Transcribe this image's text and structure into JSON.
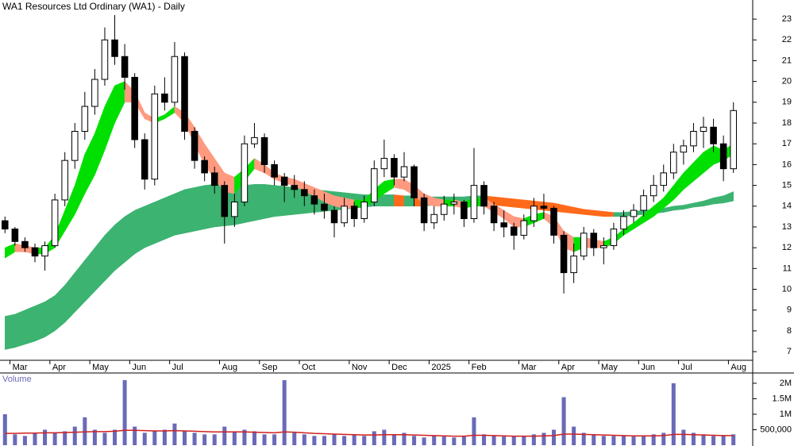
{
  "chart_data": [
    {
      "type": "candlestick",
      "title": "WA1 Resources Ltd Ordinary (WA1) - Daily",
      "categories": [
        null,
        "Mar",
        null,
        null,
        null,
        "Apr",
        null,
        null,
        null,
        "May",
        null,
        null,
        null,
        "Jun",
        null,
        null,
        null,
        "Jul",
        null,
        null,
        null,
        null,
        "Aug",
        null,
        null,
        null,
        "Sep",
        null,
        null,
        null,
        "Oct",
        null,
        null,
        null,
        null,
        "Nov",
        null,
        null,
        null,
        "Dec",
        null,
        null,
        null,
        "2025",
        null,
        null,
        null,
        "Feb",
        null,
        null,
        null,
        null,
        "Mar",
        null,
        null,
        null,
        "Apr",
        null,
        null,
        null,
        "May",
        null,
        null,
        null,
        "Jun",
        null,
        null,
        null,
        "Jul",
        null,
        null,
        null,
        null,
        "Aug"
      ],
      "open": [
        13.3,
        12.9,
        12.3,
        12.0,
        11.6,
        12.1,
        14.3,
        16.2,
        17.6,
        18.8,
        20.1,
        22.0,
        21.2,
        20.2,
        17.2,
        15.3,
        19.4,
        19.0,
        21.2,
        17.6,
        16.2,
        15.6,
        15.0,
        13.5,
        14.2,
        17.0,
        17.3,
        16.0,
        15.4,
        15.0,
        14.8,
        14.5,
        14.1,
        13.8,
        13.2,
        14.0,
        13.4,
        14.2,
        15.8,
        16.3,
        15.4,
        15.9,
        14.4,
        13.2,
        13.6,
        14.1,
        14.2,
        13.4,
        15.0,
        14.0,
        13.2,
        13.0,
        12.6,
        13.3,
        14.0,
        13.9,
        12.6,
        10.8,
        11.6,
        12.7,
        12.0,
        12.1,
        12.9,
        13.5,
        13.8,
        14.5,
        15.0,
        15.6,
        16.6,
        16.9,
        17.6,
        17.8,
        17.0,
        15.8
      ],
      "high": [
        13.5,
        13.0,
        12.5,
        12.2,
        12.3,
        14.6,
        16.6,
        18.0,
        19.5,
        20.6,
        22.6,
        23.2,
        21.8,
        20.4,
        17.5,
        19.8,
        20.2,
        21.9,
        21.4,
        17.8,
        16.4,
        15.9,
        15.2,
        14.6,
        17.4,
        18.0,
        17.5,
        16.2,
        15.6,
        15.5,
        15.2,
        14.8,
        14.6,
        14.0,
        14.4,
        14.2,
        14.5,
        16.2,
        17.2,
        16.5,
        16.6,
        16.0,
        14.6,
        14.0,
        14.5,
        14.6,
        14.3,
        16.8,
        15.2,
        14.2,
        13.8,
        13.2,
        13.6,
        14.4,
        14.6,
        14.0,
        12.8,
        12.2,
        13.0,
        12.9,
        12.5,
        13.2,
        13.8,
        14.1,
        14.8,
        15.5,
        16.0,
        17.0,
        17.2,
        18.0,
        18.3,
        18.2,
        17.4,
        19.0
      ],
      "low": [
        12.7,
        12.1,
        11.8,
        11.3,
        10.9,
        12.0,
        14.0,
        15.8,
        17.2,
        18.4,
        19.8,
        20.8,
        19.6,
        16.8,
        14.8,
        15.0,
        18.6,
        18.8,
        17.2,
        15.8,
        15.2,
        14.6,
        12.2,
        13.0,
        14.0,
        16.8,
        15.6,
        15.0,
        14.2,
        14.4,
        14.0,
        13.6,
        13.4,
        12.5,
        13.0,
        13.0,
        13.2,
        14.0,
        15.4,
        15.0,
        15.2,
        14.0,
        12.8,
        12.9,
        13.3,
        13.6,
        13.0,
        13.2,
        13.6,
        12.8,
        12.5,
        11.9,
        12.4,
        13.0,
        13.4,
        12.2,
        9.8,
        10.3,
        11.4,
        11.6,
        11.2,
        11.9,
        12.6,
        13.2,
        13.5,
        14.2,
        14.7,
        15.3,
        16.0,
        16.6,
        16.8,
        16.6,
        15.2,
        15.6
      ],
      "close": [
        12.9,
        12.3,
        12.0,
        11.6,
        12.1,
        14.3,
        16.2,
        17.6,
        18.8,
        20.1,
        22.0,
        21.2,
        20.2,
        17.2,
        15.3,
        19.4,
        19.0,
        21.2,
        17.6,
        16.2,
        15.6,
        15.0,
        13.5,
        14.2,
        17.0,
        17.3,
        16.0,
        15.4,
        15.0,
        14.8,
        14.5,
        14.1,
        13.8,
        13.2,
        14.0,
        13.4,
        14.2,
        15.8,
        16.3,
        15.4,
        15.9,
        14.4,
        13.2,
        13.6,
        14.1,
        14.2,
        13.4,
        15.0,
        14.0,
        13.2,
        13.0,
        12.6,
        13.3,
        14.0,
        13.9,
        12.6,
        10.8,
        11.6,
        12.7,
        12.0,
        12.1,
        12.9,
        13.5,
        13.8,
        14.5,
        15.0,
        15.6,
        16.6,
        16.9,
        17.6,
        17.8,
        17.0,
        15.8,
        18.6
      ],
      "up_color": "#ffffff",
      "down_color": "#000000",
      "outline_color": "#000000",
      "bands": [
        {
          "upper": [
            8.7,
            8.8,
            9.0,
            9.2,
            9.4,
            9.7,
            10.2,
            10.8,
            11.4,
            12.0,
            12.6,
            13.1,
            13.5,
            13.8,
            14.0,
            14.2,
            14.4,
            14.6,
            14.8,
            14.9,
            15.0,
            15.05,
            15.05,
            15.0,
            15.0,
            15.05,
            15.05,
            15.0,
            14.95,
            14.9,
            14.85,
            14.8,
            14.75,
            14.7,
            14.65,
            14.6,
            14.55,
            14.55,
            14.55,
            14.55,
            14.5,
            14.5,
            14.45,
            14.45,
            14.45,
            14.45,
            14.45,
            14.5,
            14.5,
            14.45,
            14.4,
            14.35,
            14.3,
            14.25,
            14.2,
            14.15,
            14.05,
            13.95,
            13.85,
            13.8,
            13.75,
            13.7,
            13.7,
            13.75,
            13.8,
            13.85,
            13.9,
            14.0,
            14.05,
            14.15,
            14.25,
            14.4,
            14.5,
            14.7
          ],
          "lower": [
            7.1,
            7.2,
            7.35,
            7.5,
            7.7,
            8.0,
            8.4,
            8.9,
            9.4,
            9.9,
            10.4,
            10.9,
            11.3,
            11.7,
            12.0,
            12.2,
            12.4,
            12.6,
            12.7,
            12.8,
            12.9,
            13.0,
            13.05,
            13.1,
            13.2,
            13.3,
            13.4,
            13.5,
            13.55,
            13.6,
            13.65,
            13.7,
            13.75,
            13.8,
            13.85,
            13.9,
            13.95,
            14.0,
            14.0,
            14.0,
            14.0,
            14.0,
            14.0,
            14.05,
            14.05,
            14.1,
            14.1,
            14.1,
            14.1,
            14.05,
            14.0,
            13.95,
            13.9,
            13.85,
            13.8,
            13.75,
            13.7,
            13.65,
            13.6,
            13.55,
            13.5,
            13.5,
            13.5,
            13.55,
            13.6,
            13.65,
            13.7,
            13.8,
            13.85,
            13.95,
            14.0,
            14.1,
            14.15,
            14.25
          ],
          "up_color": "#3cb371",
          "down_color": "#ff6a1a"
        },
        {
          "upper": [
            12.0,
            12.2,
            12.1,
            12.0,
            12.0,
            12.6,
            13.8,
            15.0,
            16.5,
            17.5,
            18.8,
            19.8,
            20.0,
            19.5,
            18.5,
            18.2,
            18.4,
            18.8,
            18.5,
            17.8,
            17.0,
            16.3,
            15.6,
            15.4,
            15.8,
            16.3,
            16.0,
            15.6,
            15.4,
            15.3,
            15.1,
            14.9,
            14.7,
            14.5,
            14.4,
            14.3,
            14.3,
            14.8,
            15.2,
            15.3,
            15.3,
            15.0,
            14.6,
            14.4,
            14.3,
            14.3,
            14.2,
            14.4,
            14.4,
            14.1,
            13.8,
            13.5,
            13.4,
            13.6,
            13.7,
            13.5,
            12.8,
            12.5,
            12.5,
            12.4,
            12.3,
            12.5,
            12.9,
            13.2,
            13.6,
            14.0,
            14.4,
            15.0,
            15.6,
            16.1,
            16.6,
            16.9,
            16.7,
            17.0
          ],
          "lower": [
            11.5,
            11.8,
            11.8,
            11.7,
            11.7,
            12.0,
            12.8,
            13.6,
            14.6,
            15.5,
            16.7,
            18.0,
            19.0,
            19.0,
            18.2,
            18.0,
            18.2,
            18.5,
            18.0,
            17.0,
            16.0,
            15.3,
            14.7,
            14.6,
            15.2,
            15.8,
            15.6,
            15.3,
            15.1,
            15.0,
            14.7,
            14.5,
            14.2,
            14.0,
            13.9,
            13.9,
            14.0,
            14.2,
            14.6,
            14.9,
            14.8,
            14.5,
            14.1,
            14.0,
            14.0,
            14.0,
            13.9,
            14.0,
            14.0,
            13.7,
            13.4,
            13.0,
            13.0,
            13.2,
            13.4,
            13.0,
            12.0,
            11.8,
            12.0,
            12.0,
            12.0,
            12.2,
            12.6,
            12.9,
            13.2,
            13.5,
            13.9,
            14.3,
            14.8,
            15.2,
            15.6,
            16.0,
            16.2,
            16.5
          ],
          "up_color": "#00e000",
          "down_color": "#ff9a80"
        }
      ],
      "ylim": [
        6.66,
        23.92
      ],
      "yticks": [
        7,
        8,
        9,
        10,
        11,
        12,
        13,
        14,
        15,
        16,
        17,
        18,
        19,
        20,
        21,
        22,
        23
      ]
    },
    {
      "type": "bar",
      "title": "Volume",
      "color": "#6a6ab8",
      "values": [
        1000000,
        350000,
        300000,
        400000,
        500000,
        400000,
        450000,
        600000,
        900000,
        500000,
        400000,
        500000,
        2100000,
        600000,
        400000,
        450000,
        500000,
        700000,
        450000,
        400000,
        350000,
        350000,
        600000,
        450000,
        500000,
        450000,
        350000,
        350000,
        2100000,
        400000,
        350000,
        300000,
        300000,
        350000,
        300000,
        350000,
        300000,
        450000,
        500000,
        350000,
        400000,
        300000,
        250000,
        300000,
        280000,
        250000,
        300000,
        900000,
        350000,
        300000,
        280000,
        300000,
        280000,
        350000,
        400000,
        500000,
        1550000,
        600000,
        400000,
        350000,
        300000,
        300000,
        300000,
        280000,
        300000,
        350000,
        400000,
        2000000,
        500000,
        400000,
        350000,
        300000,
        300000,
        350000
      ],
      "ma_values": [
        380000,
        380000,
        390000,
        390000,
        400000,
        400000,
        410000,
        420000,
        430000,
        440000,
        440000,
        450000,
        480000,
        480000,
        470000,
        460000,
        460000,
        470000,
        460000,
        450000,
        440000,
        430000,
        430000,
        430000,
        430000,
        420000,
        410000,
        400000,
        430000,
        420000,
        400000,
        380000,
        370000,
        360000,
        350000,
        340000,
        330000,
        330000,
        340000,
        340000,
        340000,
        330000,
        320000,
        310000,
        300000,
        290000,
        290000,
        320000,
        320000,
        310000,
        300000,
        290000,
        290000,
        290000,
        300000,
        310000,
        360000,
        360000,
        350000,
        340000,
        330000,
        320000,
        310000,
        300000,
        300000,
        300000,
        310000,
        350000,
        350000,
        340000,
        330000,
        320000,
        310000,
        310000
      ],
      "ma_color": "#d02020",
      "ylim": [
        0,
        2280000
      ],
      "yticks": [
        {
          "value": 500000,
          "label": "500,000"
        },
        {
          "value": 1000000,
          "label": "1M"
        },
        {
          "value": 1500000,
          "label": "1.5M"
        },
        {
          "value": 2000000,
          "label": "2M"
        }
      ]
    }
  ]
}
